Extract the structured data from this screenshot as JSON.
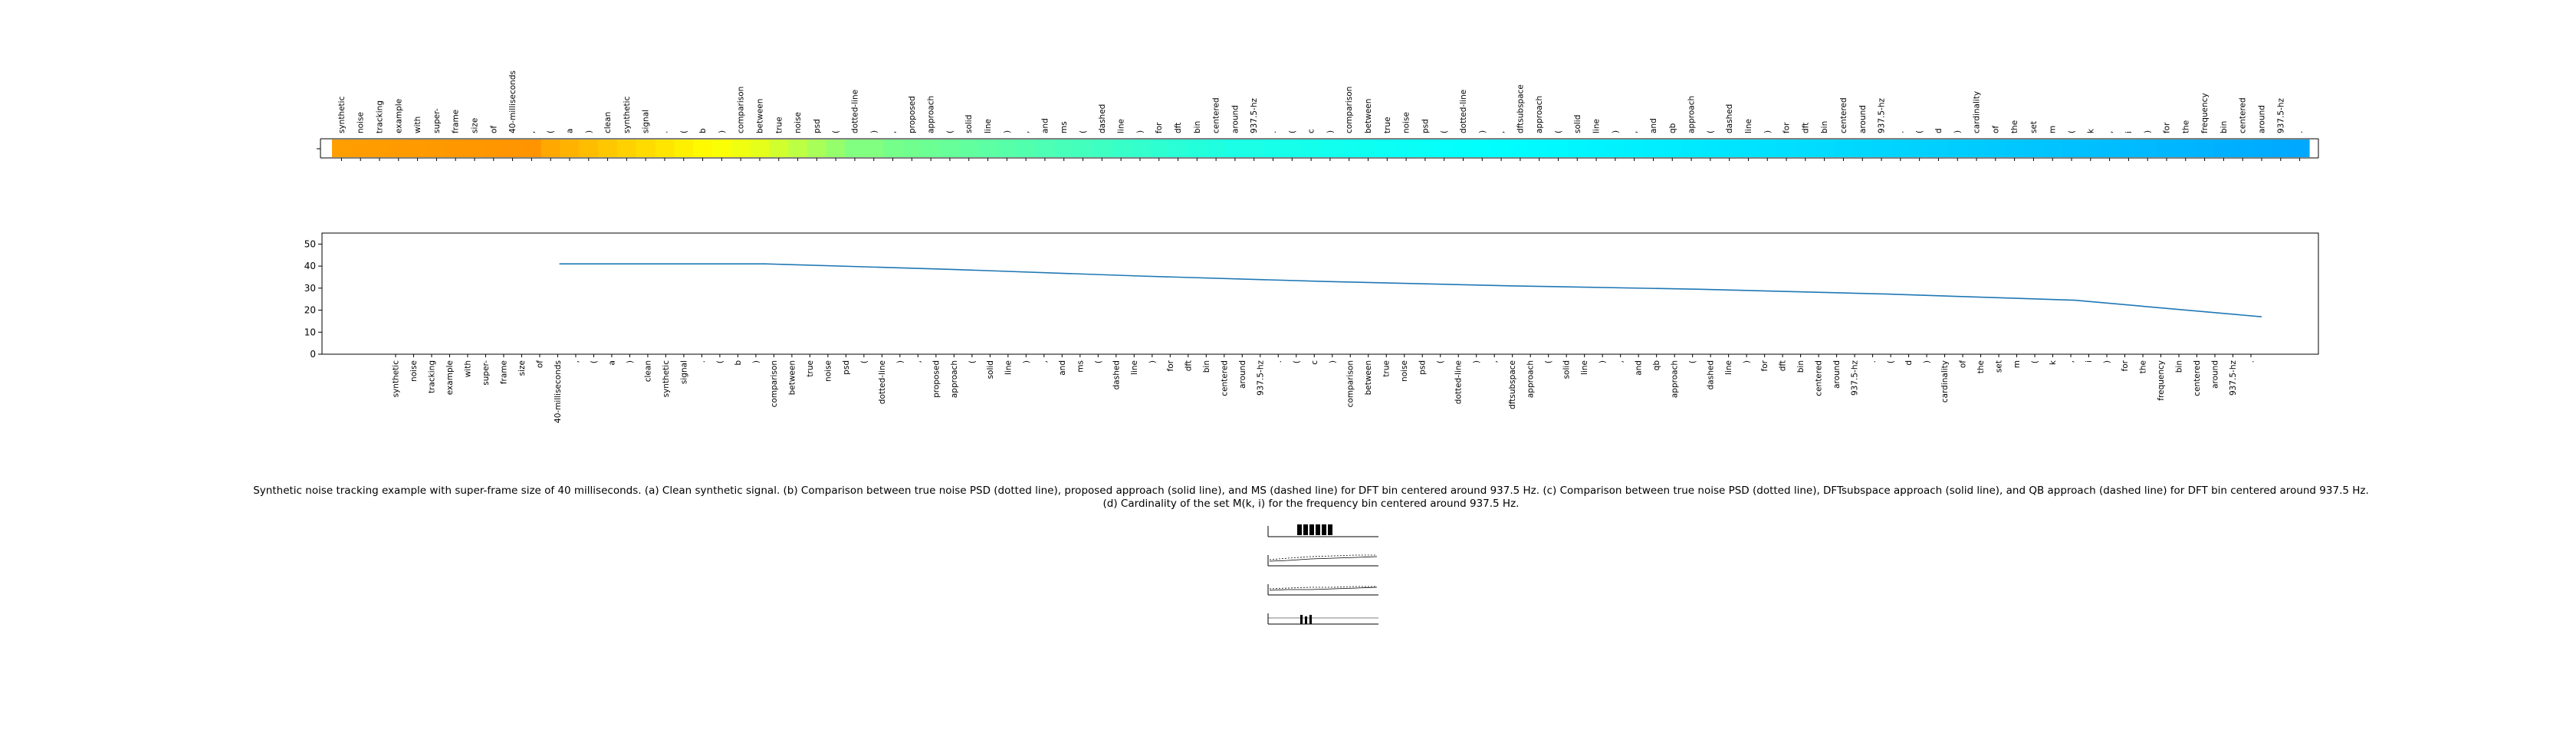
{
  "tokens": [
    "synthetic",
    "noise",
    "tracking",
    "example",
    "with",
    "super-",
    "frame",
    "size",
    "of",
    "40-milliseconds",
    ",",
    "(",
    "a",
    ")",
    "clean",
    "synthetic",
    "signal",
    ".",
    "(",
    "b",
    ")",
    "comparison",
    "between",
    "true",
    "noise",
    "psd",
    "(",
    "dotted-line",
    ")",
    ",",
    "proposed",
    "approach",
    "(",
    "solid",
    "line",
    ")",
    ",",
    "and",
    "ms",
    "(",
    "dashed",
    "line",
    ")",
    "for",
    "dft",
    "bin",
    "centered",
    "around",
    "937.5-hz",
    ".",
    "(",
    "c",
    ")",
    "comparison",
    "between",
    "true",
    "noise",
    "psd",
    "(",
    "dotted-line",
    ")",
    ",",
    "dftsubspace",
    "approach",
    "(",
    "solid",
    "line",
    ")",
    ",",
    "and",
    "qb",
    "approach",
    "(",
    "dashed",
    "line",
    ")",
    "for",
    "dft",
    "bin",
    "centered",
    "around",
    "937.5-hz",
    ".",
    "(",
    "d",
    ")",
    "cardinality",
    "of",
    "the",
    "set",
    "m",
    "(",
    "k",
    ",",
    "i",
    ")",
    "for",
    "the",
    "frequency",
    "bin",
    "centered",
    "around",
    "937.5-hz",
    "."
  ],
  "caption": "Synthetic noise tracking example with super-frame size of 40 milliseconds. (a) Clean synthetic signal. (b) Comparison between true noise PSD (dotted line), proposed approach (solid line), and MS (dashed line) for DFT bin centered around 937.5 Hz. (c) Comparison between true noise PSD (dotted line), DFTsubspace approach (solid line), and QB approach (dashed line) for DFT bin centered around 937.5 Hz. (d) Cardinality of the set M(k, i) for the frequency bin centered around 937.5 Hz.",
  "colors": {
    "line": "#1f77b4",
    "axis": "#000000"
  },
  "chart_data": [
    {
      "type": "heatmap",
      "title": "",
      "colormap": "jet",
      "xlabels_source": "tokens",
      "values": [
        0.72,
        0.721,
        0.722,
        0.723,
        0.724,
        0.725,
        0.726,
        0.727,
        0.728,
        0.729,
        0.73,
        0.71,
        0.7,
        0.69,
        0.68,
        0.67,
        0.66,
        0.65,
        0.64,
        0.63,
        0.62,
        0.61,
        0.6,
        0.58,
        0.56,
        0.54,
        0.52,
        0.5,
        0.5,
        0.49,
        0.485,
        0.48,
        0.475,
        0.47,
        0.465,
        0.46,
        0.455,
        0.45,
        0.445,
        0.44,
        0.435,
        0.43,
        0.425,
        0.42,
        0.415,
        0.41,
        0.405,
        0.4,
        0.4,
        0.398,
        0.396,
        0.394,
        0.392,
        0.39,
        0.388,
        0.386,
        0.384,
        0.382,
        0.38,
        0.378,
        0.376,
        0.374,
        0.372,
        0.37,
        0.368,
        0.366,
        0.364,
        0.362,
        0.36,
        0.358,
        0.356,
        0.354,
        0.352,
        0.35,
        0.348,
        0.346,
        0.344,
        0.342,
        0.34,
        0.338,
        0.336,
        0.334,
        0.332,
        0.33,
        0.328,
        0.326,
        0.324,
        0.322,
        0.32,
        0.318,
        0.316,
        0.314,
        0.312,
        0.31,
        0.308,
        0.306,
        0.304,
        0.302,
        0.3,
        0.298,
        0.296,
        0.294,
        0.292,
        0.29,
        0.288,
        0.286,
        0.285
      ]
    },
    {
      "type": "line",
      "title": "",
      "xlabel": "",
      "ylabel": "",
      "ylim": [
        0,
        55
      ],
      "yticks": [
        0,
        10,
        20,
        30,
        40,
        50
      ],
      "grid": false,
      "xlabels_source": "tokens",
      "x": [
        9,
        10,
        20,
        30,
        40,
        50,
        60,
        70,
        80,
        90,
        100
      ],
      "y": [
        41,
        41,
        41,
        38.5,
        35.5,
        33,
        31,
        29.5,
        27.3,
        24.5,
        17
      ]
    }
  ]
}
